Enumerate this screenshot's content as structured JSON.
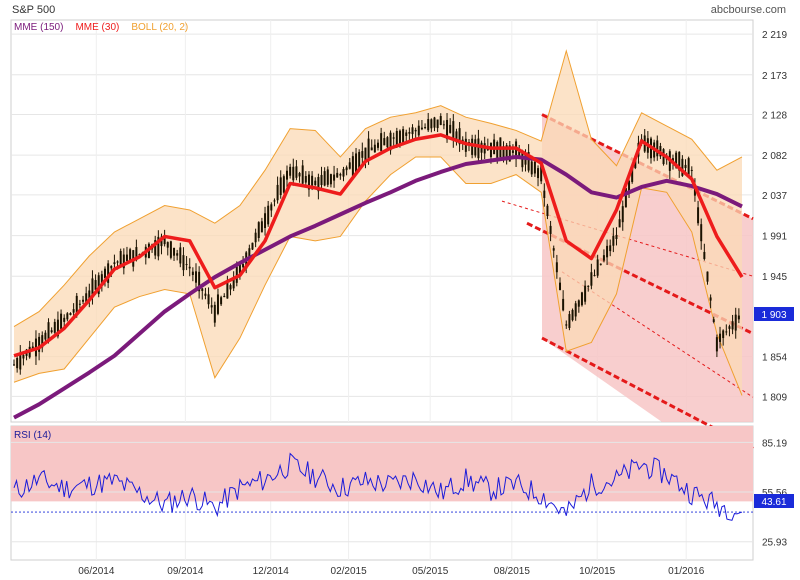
{
  "chart_title": "S&P 500",
  "source": "abcbourse.com",
  "colors": {
    "mme150": "#7b1a7b",
    "mme30": "#ee1c1c",
    "boll": "#f0a030",
    "boll_fill": "#fbd9b5",
    "rsi_line": "#1c1cd9",
    "rsi_zone": "#f7c6c6",
    "channel_fill": "#f7c6c6",
    "price_badge": "#1a2bd9",
    "candles": "#1a1200"
  },
  "legend": [
    {
      "label": "MME (150)",
      "color": "#7b1a7b"
    },
    {
      "label": "MME (30)",
      "color": "#ee1c1c"
    },
    {
      "label": "BOLL (20, 2)",
      "color": "#f0a030"
    }
  ],
  "chart_data": [
    {
      "type": "line",
      "title": "S&P 500",
      "indicators": [
        "MME (150)",
        "MME (30)",
        "BOLL (20, 2)"
      ],
      "x_ticks": [
        "06/2014",
        "09/2014",
        "12/2014",
        "02/2015",
        "05/2015",
        "08/2015",
        "10/2015",
        "01/2016"
      ],
      "y_ticks": [
        "2 219",
        "2 173",
        "2 128",
        "2 082",
        "2 037",
        "1 991",
        "1 945",
        "1 854",
        "1 809"
      ],
      "ylim": [
        1780,
        2235
      ],
      "last_price": "1 903",
      "series": [
        {
          "name": "MME (150)",
          "values": [
            1785,
            1800,
            1818,
            1836,
            1855,
            1880,
            1905,
            1925,
            1944,
            1960,
            1975,
            1990,
            2002,
            2015,
            2028,
            2040,
            2053,
            2063,
            2072,
            2076,
            2080,
            2077,
            2060,
            2040,
            2034,
            2046,
            2053,
            2047,
            2038,
            2024
          ]
        },
        {
          "name": "MME (30)",
          "values": [
            1855,
            1864,
            1886,
            1918,
            1953,
            1967,
            1990,
            1985,
            1932,
            1946,
            1985,
            2050,
            2045,
            2038,
            2075,
            2090,
            2100,
            2105,
            2095,
            2090,
            2090,
            2073,
            1985,
            1965,
            2020,
            2098,
            2080,
            2055,
            1990,
            1944
          ]
        },
        {
          "name": "BOLL (20, 2) upper",
          "values": [
            1888,
            1905,
            1935,
            1968,
            1995,
            2010,
            2025,
            2020,
            2005,
            2025,
            2065,
            2112,
            2110,
            2080,
            2112,
            2125,
            2130,
            2138,
            2125,
            2118,
            2110,
            2098,
            2200,
            2100,
            2070,
            2130,
            2115,
            2100,
            2065,
            2080
          ]
        },
        {
          "name": "BOLL (20, 2) lower",
          "values": [
            1825,
            1835,
            1840,
            1875,
            1910,
            1922,
            1930,
            1925,
            1830,
            1875,
            1935,
            1990,
            1985,
            1990,
            2030,
            2060,
            2080,
            2080,
            2050,
            2050,
            2060,
            2040,
            1860,
            1870,
            1925,
            2045,
            2040,
            1995,
            1880,
            1810
          ]
        },
        {
          "name": "Price",
          "values": [
            1845,
            1870,
            1895,
            1925,
            1960,
            1970,
            1985,
            1955,
            1905,
            1950,
            2010,
            2065,
            2050,
            2060,
            2085,
            2100,
            2110,
            2120,
            2095,
            2090,
            2085,
            2060,
            1890,
            1940,
            1990,
            2100,
            2080,
            2065,
            1870,
            1903
          ]
        }
      ]
    },
    {
      "type": "line",
      "title": "RSI (14)",
      "y_ticks": [
        "85.19",
        "55.56",
        "25.93"
      ],
      "ylim": [
        15,
        95
      ],
      "overbought_zone": [
        50,
        95
      ],
      "last_value": "43.61",
      "series": [
        {
          "name": "RSI (14)",
          "values": [
            56,
            63,
            58,
            60,
            62,
            55,
            48,
            54,
            46,
            58,
            63,
            72,
            65,
            58,
            62,
            60,
            64,
            55,
            63,
            57,
            60,
            54,
            42,
            60,
            63,
            72,
            66,
            55,
            48,
            43.61
          ]
        }
      ]
    }
  ]
}
